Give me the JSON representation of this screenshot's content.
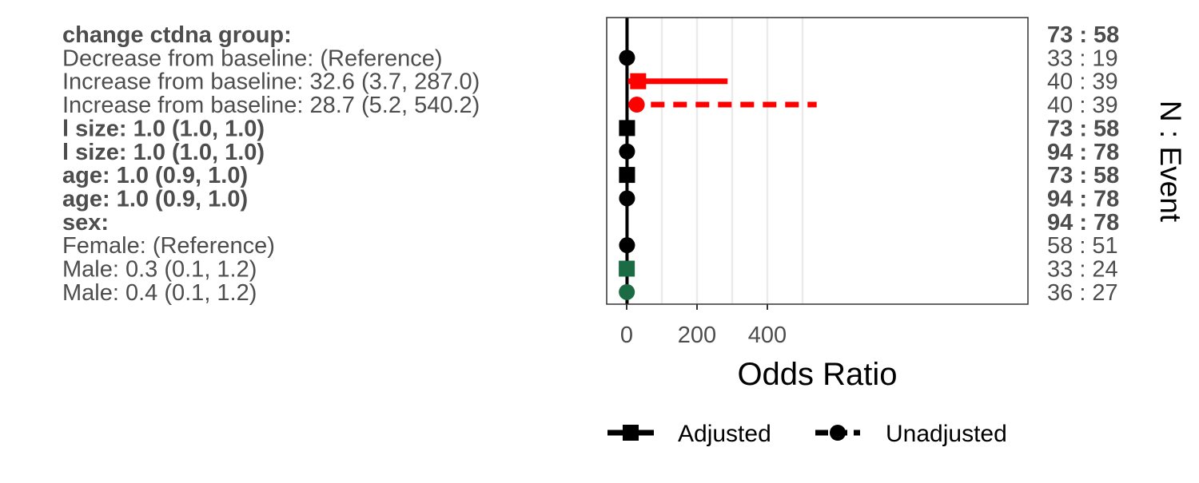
{
  "chart_data": {
    "type": "forest",
    "xlabel": "Odds Ratio",
    "right_axis_label": "N : Event",
    "xlim": [
      -15,
      560
    ],
    "xticks": [
      0,
      200,
      400
    ],
    "gridlines_x": [
      0,
      100,
      200,
      300,
      400,
      500
    ],
    "reference_line": 1,
    "legend": {
      "position": "bottom",
      "entries": [
        {
          "label": "Adjusted",
          "marker": "square",
          "line": "solid"
        },
        {
          "label": "Unadjusted",
          "marker": "circle",
          "line": "dashed"
        }
      ]
    },
    "rows": [
      {
        "label": "change ctdna group:",
        "bold": true,
        "counts": "73 : 58",
        "counts_bold": true,
        "point": null
      },
      {
        "label": "Decrease from baseline: (Reference)",
        "bold": false,
        "counts": "33 : 19",
        "counts_bold": false,
        "point": {
          "est": 1,
          "marker": "circle",
          "color": "#000000"
        }
      },
      {
        "label": "Increase from baseline: 32.6 (3.7, 287.0)",
        "bold": false,
        "counts": "40 : 39",
        "counts_bold": false,
        "point": {
          "est": 32.6,
          "low": 3.7,
          "high": 287.0,
          "marker": "square",
          "line": "solid",
          "color": "#ff0000"
        }
      },
      {
        "label": "Increase from baseline: 28.7 (5.2, 540.2)",
        "bold": false,
        "counts": "40 : 39",
        "counts_bold": false,
        "point": {
          "est": 28.7,
          "low": 5.2,
          "high": 540.2,
          "marker": "circle",
          "line": "dashed",
          "color": "#ff0000"
        }
      },
      {
        "label": "l size: 1.0 (1.0, 1.0)",
        "bold": true,
        "counts": "73 : 58",
        "counts_bold": true,
        "point": {
          "est": 1.0,
          "low": 1.0,
          "high": 1.0,
          "marker": "square",
          "line": "solid",
          "color": "#000000"
        }
      },
      {
        "label": "l size: 1.0 (1.0, 1.0)",
        "bold": true,
        "counts": "94 : 78",
        "counts_bold": true,
        "point": {
          "est": 1.0,
          "low": 1.0,
          "high": 1.0,
          "marker": "circle",
          "line": "dashed",
          "color": "#000000"
        }
      },
      {
        "label": "age: 1.0 (0.9, 1.0)",
        "bold": true,
        "counts": "73 : 58",
        "counts_bold": true,
        "point": {
          "est": 1.0,
          "low": 0.9,
          "high": 1.0,
          "marker": "square",
          "line": "solid",
          "color": "#000000"
        }
      },
      {
        "label": "age: 1.0 (0.9, 1.0)",
        "bold": true,
        "counts": "94 : 78",
        "counts_bold": true,
        "point": {
          "est": 1.0,
          "low": 0.9,
          "high": 1.0,
          "marker": "circle",
          "line": "dashed",
          "color": "#000000"
        }
      },
      {
        "label": "sex:",
        "bold": true,
        "counts": "94 : 78",
        "counts_bold": true,
        "point": null
      },
      {
        "label": "Female: (Reference)",
        "bold": false,
        "counts": "58 : 51",
        "counts_bold": false,
        "point": {
          "est": 1,
          "marker": "circle",
          "color": "#000000"
        }
      },
      {
        "label": "Male: 0.3 (0.1, 1.2)",
        "bold": false,
        "counts": "33 : 24",
        "counts_bold": false,
        "point": {
          "est": 0.3,
          "low": 0.1,
          "high": 1.2,
          "marker": "square",
          "line": "solid",
          "color": "#1b6b45"
        }
      },
      {
        "label": "Male: 0.4 (0.1, 1.2)",
        "bold": false,
        "counts": "36 : 27",
        "counts_bold": false,
        "point": {
          "est": 0.4,
          "low": 0.1,
          "high": 1.2,
          "marker": "circle",
          "line": "dashed",
          "color": "#1b6b45"
        }
      }
    ]
  }
}
